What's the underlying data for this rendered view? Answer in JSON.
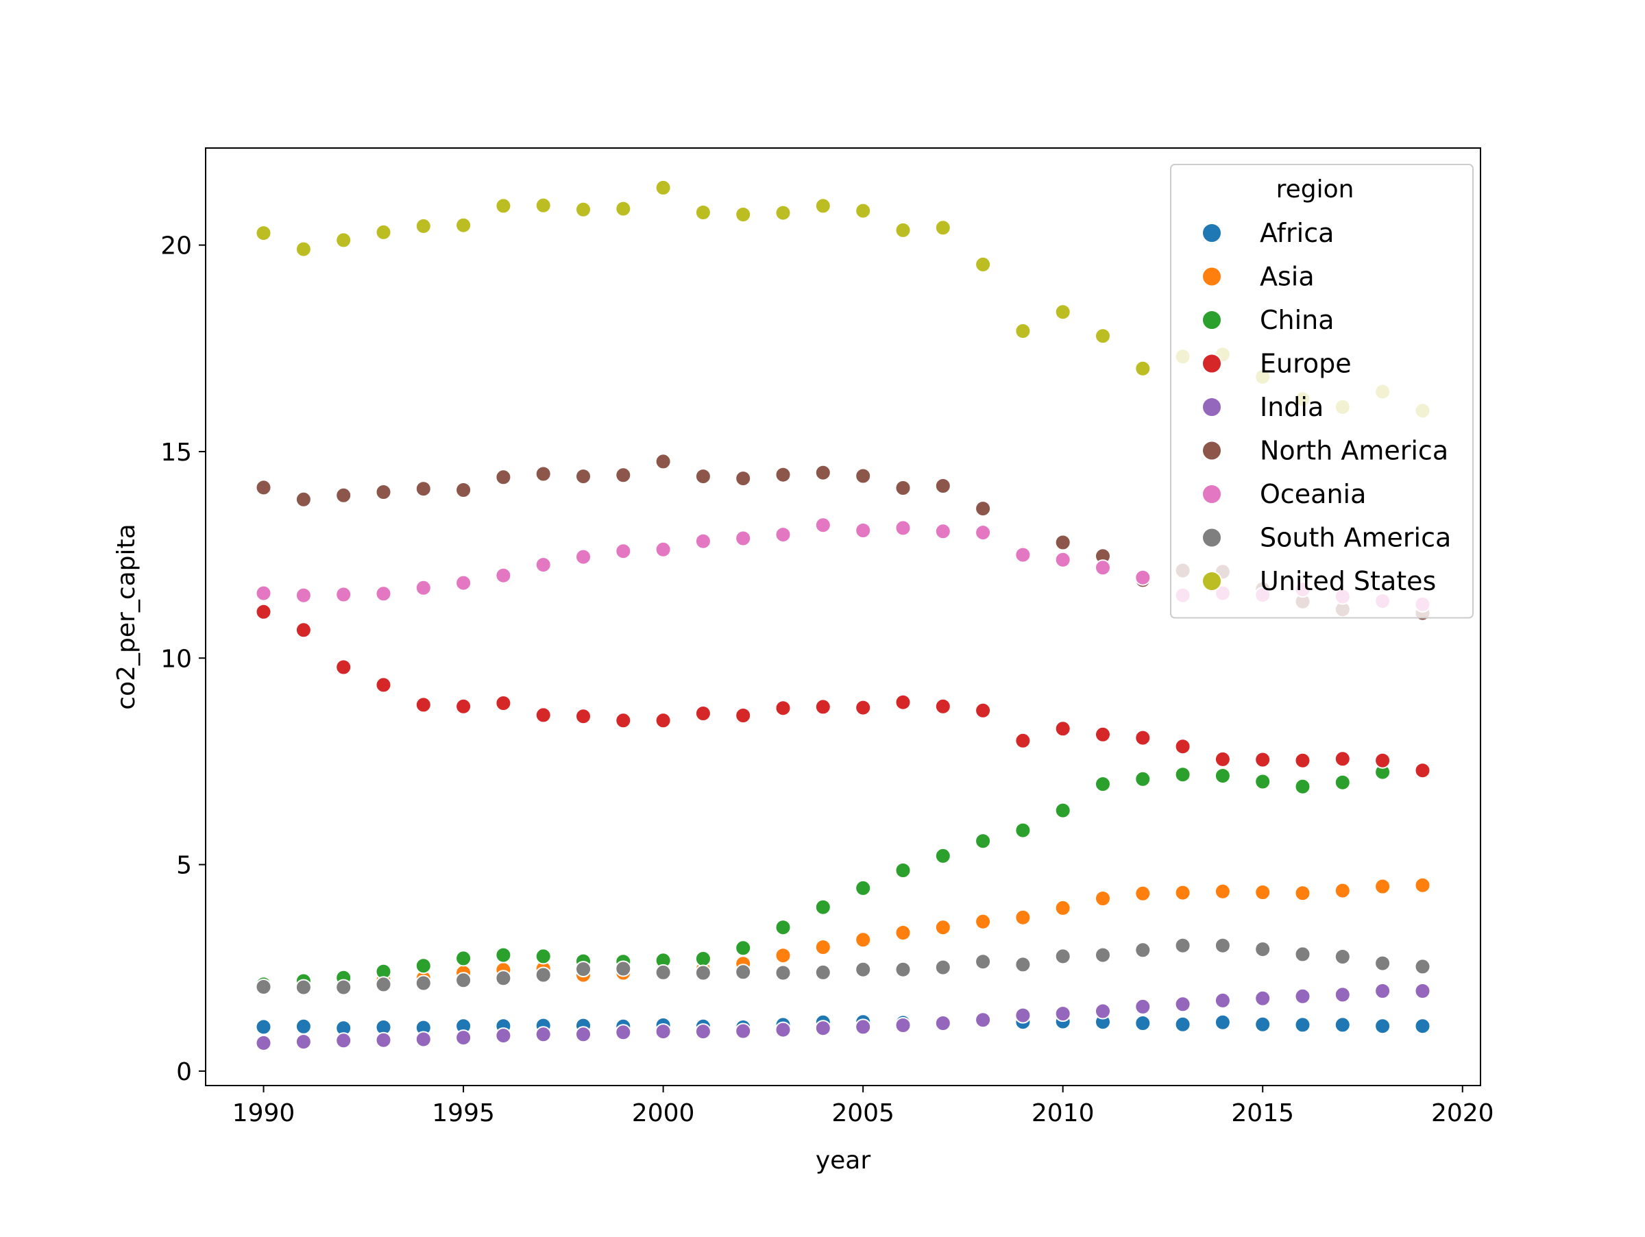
{
  "chart_data": {
    "type": "scatter",
    "title": "",
    "xlabel": "year",
    "ylabel": "co2_per_capita",
    "xlim": [
      1988.55,
      2020.45
    ],
    "ylim": [
      -0.35,
      22.35
    ],
    "x_ticks": [
      1990,
      1995,
      2000,
      2005,
      2010,
      2015,
      2020
    ],
    "y_ticks": [
      0,
      5,
      10,
      15,
      20
    ],
    "grid": false,
    "legend": {
      "title": "region",
      "position": "top-right"
    },
    "x": [
      1990,
      1991,
      1992,
      1993,
      1994,
      1995,
      1996,
      1997,
      1998,
      1999,
      2000,
      2001,
      2002,
      2003,
      2004,
      2005,
      2006,
      2007,
      2008,
      2009,
      2010,
      2011,
      2012,
      2013,
      2014,
      2015,
      2016,
      2017,
      2018,
      2019
    ],
    "series": [
      {
        "name": "Africa",
        "color": "#1f77b4",
        "values": [
          1.07,
          1.08,
          1.04,
          1.06,
          1.05,
          1.09,
          1.09,
          1.1,
          1.1,
          1.08,
          1.11,
          1.08,
          1.06,
          1.12,
          1.18,
          1.19,
          1.17,
          1.15,
          1.22,
          1.19,
          1.2,
          1.19,
          1.16,
          1.13,
          1.18,
          1.13,
          1.12,
          1.12,
          1.09,
          1.09
        ]
      },
      {
        "name": "Asia",
        "color": "#ff7f0e",
        "values": [
          2.02,
          2.07,
          2.15,
          2.2,
          2.25,
          2.38,
          2.45,
          2.48,
          2.33,
          2.38,
          2.45,
          2.47,
          2.6,
          2.8,
          3.0,
          3.18,
          3.35,
          3.48,
          3.62,
          3.72,
          3.95,
          4.18,
          4.3,
          4.32,
          4.35,
          4.33,
          4.31,
          4.37,
          4.47,
          4.5
        ]
      },
      {
        "name": "China",
        "color": "#2ca02c",
        "values": [
          2.1,
          2.18,
          2.26,
          2.41,
          2.55,
          2.73,
          2.81,
          2.78,
          2.66,
          2.65,
          2.68,
          2.72,
          2.98,
          3.48,
          3.97,
          4.43,
          4.86,
          5.21,
          5.57,
          5.83,
          6.31,
          6.95,
          7.07,
          7.18,
          7.15,
          7.01,
          6.89,
          6.99,
          7.24,
          7.29
        ]
      },
      {
        "name": "Europe",
        "color": "#d62728",
        "values": [
          11.12,
          10.68,
          9.78,
          9.35,
          8.87,
          8.83,
          8.91,
          8.62,
          8.59,
          8.49,
          8.49,
          8.66,
          8.61,
          8.79,
          8.82,
          8.8,
          8.93,
          8.83,
          8.73,
          8.0,
          8.29,
          8.15,
          8.07,
          7.86,
          7.55,
          7.54,
          7.52,
          7.56,
          7.52,
          7.28
        ]
      },
      {
        "name": "India",
        "color": "#9467bd",
        "values": [
          0.68,
          0.71,
          0.74,
          0.75,
          0.77,
          0.81,
          0.86,
          0.89,
          0.89,
          0.94,
          0.96,
          0.96,
          0.97,
          1.0,
          1.04,
          1.07,
          1.11,
          1.16,
          1.24,
          1.35,
          1.39,
          1.45,
          1.56,
          1.62,
          1.71,
          1.76,
          1.81,
          1.85,
          1.94,
          1.94
        ]
      },
      {
        "name": "North America",
        "color": "#8c564b",
        "values": [
          14.13,
          13.84,
          13.94,
          14.02,
          14.1,
          14.07,
          14.38,
          14.46,
          14.4,
          14.43,
          14.76,
          14.4,
          14.35,
          14.44,
          14.49,
          14.41,
          14.12,
          14.17,
          13.62,
          12.53,
          12.8,
          12.47,
          11.89,
          12.12,
          12.09,
          11.67,
          11.37,
          11.18,
          11.38,
          11.09
        ]
      },
      {
        "name": "Oceania",
        "color": "#e377c2",
        "values": [
          11.57,
          11.52,
          11.54,
          11.56,
          11.7,
          11.82,
          12.0,
          12.26,
          12.45,
          12.59,
          12.63,
          12.83,
          12.9,
          12.99,
          13.22,
          13.09,
          13.15,
          13.07,
          13.04,
          12.5,
          12.38,
          12.19,
          11.95,
          11.52,
          11.57,
          11.53,
          11.66,
          11.49,
          11.38,
          11.3
        ]
      },
      {
        "name": "South America",
        "color": "#7f7f7f",
        "values": [
          2.04,
          2.03,
          2.03,
          2.1,
          2.13,
          2.2,
          2.25,
          2.33,
          2.47,
          2.48,
          2.39,
          2.38,
          2.4,
          2.38,
          2.39,
          2.46,
          2.46,
          2.51,
          2.65,
          2.58,
          2.78,
          2.81,
          2.93,
          3.04,
          3.04,
          2.95,
          2.83,
          2.77,
          2.61,
          2.53
        ]
      },
      {
        "name": "United States",
        "color": "#bcbd22",
        "values": [
          20.29,
          19.9,
          20.12,
          20.31,
          20.46,
          20.48,
          20.95,
          20.96,
          20.86,
          20.88,
          21.39,
          20.79,
          20.74,
          20.78,
          20.95,
          20.83,
          20.36,
          20.42,
          19.53,
          17.92,
          18.38,
          17.8,
          17.01,
          17.3,
          17.35,
          16.81,
          16.27,
          16.08,
          16.45,
          15.99
        ]
      }
    ]
  }
}
